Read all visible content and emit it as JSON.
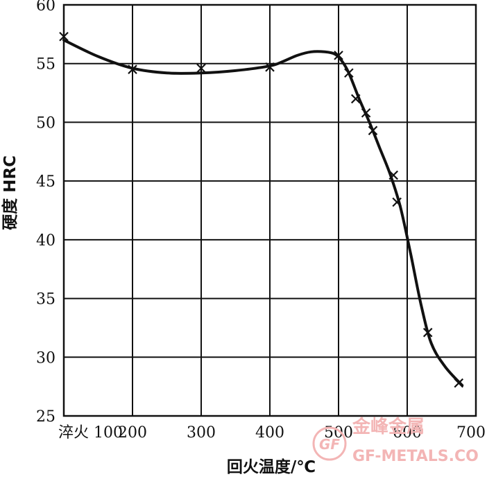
{
  "chart_data": {
    "type": "line",
    "xlabel": "回火温度/℃",
    "ylabel": "硬度 HRC",
    "xlim": [
      100,
      700
    ],
    "ylim": [
      25,
      60
    ],
    "x_ticks": [
      100,
      200,
      300,
      400,
      500,
      600,
      700
    ],
    "x_tick_labels": [
      "淬火 100",
      "200",
      "300",
      "400",
      "500",
      "600",
      "700"
    ],
    "y_ticks": [
      25,
      30,
      35,
      40,
      45,
      50,
      55,
      60
    ],
    "grid": true,
    "series": [
      {
        "marker": "x",
        "points": [
          {
            "x": 100,
            "y": 57.3
          },
          {
            "x": 200,
            "y": 54.5
          },
          {
            "x": 300,
            "y": 54.6
          },
          {
            "x": 400,
            "y": 54.7
          },
          {
            "x": 500,
            "y": 55.7
          },
          {
            "x": 515,
            "y": 54.2
          },
          {
            "x": 525,
            "y": 52.0
          },
          {
            "x": 540,
            "y": 50.8
          },
          {
            "x": 550,
            "y": 49.3
          },
          {
            "x": 580,
            "y": 45.5
          },
          {
            "x": 585,
            "y": 43.2
          },
          {
            "x": 630,
            "y": 32.1
          },
          {
            "x": 675,
            "y": 27.8
          }
        ],
        "curve": [
          {
            "x": 100,
            "y": 57.0
          },
          {
            "x": 150,
            "y": 55.6
          },
          {
            "x": 200,
            "y": 54.6
          },
          {
            "x": 250,
            "y": 54.2
          },
          {
            "x": 300,
            "y": 54.2
          },
          {
            "x": 350,
            "y": 54.4
          },
          {
            "x": 400,
            "y": 54.8
          },
          {
            "x": 420,
            "y": 55.2
          },
          {
            "x": 440,
            "y": 55.7
          },
          {
            "x": 460,
            "y": 56.0
          },
          {
            "x": 480,
            "y": 56.0
          },
          {
            "x": 495,
            "y": 55.8
          },
          {
            "x": 505,
            "y": 55.2
          },
          {
            "x": 515,
            "y": 54.2
          },
          {
            "x": 530,
            "y": 52.0
          },
          {
            "x": 545,
            "y": 50.0
          },
          {
            "x": 560,
            "y": 47.8
          },
          {
            "x": 575,
            "y": 45.6
          },
          {
            "x": 590,
            "y": 42.8
          },
          {
            "x": 605,
            "y": 38.8
          },
          {
            "x": 620,
            "y": 34.5
          },
          {
            "x": 635,
            "y": 31.2
          },
          {
            "x": 655,
            "y": 29.2
          },
          {
            "x": 680,
            "y": 27.6
          }
        ]
      }
    ]
  },
  "watermark": {
    "line1": "金峰金属",
    "line2": "GF-METALS.CO",
    "logo_text": "GF"
  },
  "colors": {
    "line": "#111111",
    "grid": "#111111",
    "watermark": "#f3b5b5"
  }
}
